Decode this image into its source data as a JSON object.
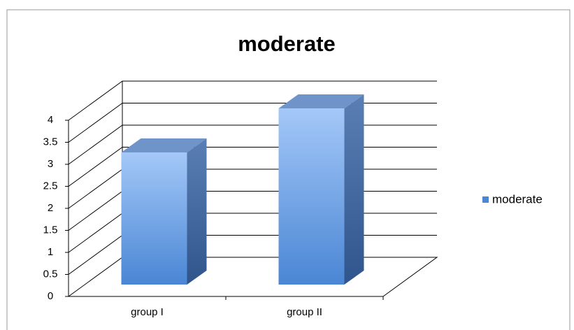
{
  "chart_data": {
    "type": "bar3d",
    "title": "moderate",
    "categories": [
      "group I",
      "group II"
    ],
    "series": [
      {
        "name": "moderate",
        "color": "#4a86d4",
        "values": [
          3,
          4
        ]
      }
    ],
    "ylim": [
      0,
      4
    ],
    "yticks": [
      0,
      0.5,
      1,
      1.5,
      2,
      2.5,
      3,
      3.5,
      4
    ],
    "grid": true,
    "legend": "right"
  }
}
